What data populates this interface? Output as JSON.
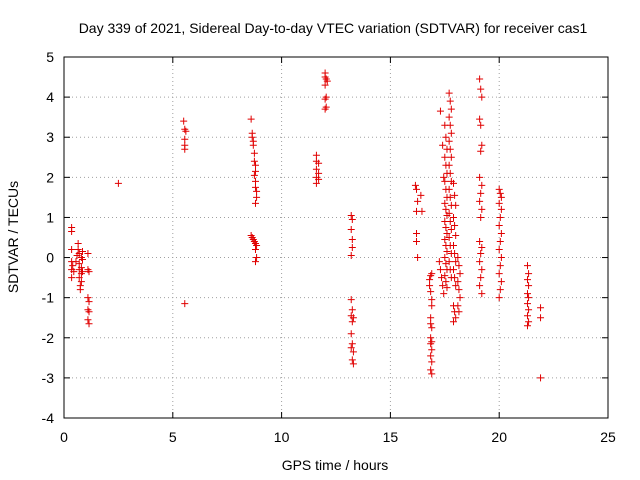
{
  "chart_data": {
    "type": "scatter",
    "title": "Day 339 of 2021, Sidereal Day-to-day VTEC variation (SDTVAR) for receiver cas1",
    "xlabel": "GPS time / hours",
    "ylabel": "SDTVAR / TECUs",
    "xlim": [
      0,
      25
    ],
    "ylim": [
      -4,
      5
    ],
    "xticks": [
      "0",
      "5",
      "10",
      "15",
      "20",
      "25"
    ],
    "yticks": [
      "-4",
      "-3",
      "-2",
      "-1",
      "0",
      "1",
      "2",
      "3",
      "4",
      "5"
    ],
    "grid": true,
    "marker": "+",
    "color": "#e00000",
    "series": [
      {
        "name": "SDTVAR",
        "points": [
          [
            0.35,
            0.75
          ],
          [
            0.35,
            0.65
          ],
          [
            0.35,
            0.2
          ],
          [
            0.35,
            -0.1
          ],
          [
            0.35,
            -0.3
          ],
          [
            0.35,
            -0.5
          ],
          [
            0.4,
            -0.2
          ],
          [
            0.45,
            -0.35
          ],
          [
            0.55,
            -0.1
          ],
          [
            0.6,
            0.05
          ],
          [
            0.65,
            0.35
          ],
          [
            0.65,
            0.2
          ],
          [
            0.7,
            0.1
          ],
          [
            0.7,
            -0.15
          ],
          [
            0.7,
            -0.3
          ],
          [
            0.7,
            -0.5
          ],
          [
            0.75,
            -0.7
          ],
          [
            0.75,
            -0.8
          ],
          [
            0.8,
            -0.6
          ],
          [
            0.8,
            -0.4
          ],
          [
            0.8,
            -0.25
          ],
          [
            0.8,
            0.0
          ],
          [
            0.85,
            0.15
          ],
          [
            0.85,
            -0.05
          ],
          [
            0.85,
            -0.35
          ],
          [
            1.1,
            0.1
          ],
          [
            1.1,
            -0.3
          ],
          [
            1.15,
            -0.35
          ],
          [
            1.1,
            -1.0
          ],
          [
            1.15,
            -1.1
          ],
          [
            1.1,
            -1.3
          ],
          [
            1.15,
            -1.35
          ],
          [
            1.1,
            -1.55
          ],
          [
            1.15,
            -1.65
          ],
          [
            2.5,
            1.85
          ],
          [
            5.5,
            3.4
          ],
          [
            5.55,
            3.2
          ],
          [
            5.6,
            3.15
          ],
          [
            5.55,
            2.95
          ],
          [
            5.55,
            2.8
          ],
          [
            5.55,
            2.7
          ],
          [
            5.55,
            -1.15
          ],
          [
            8.6,
            3.45
          ],
          [
            8.65,
            3.1
          ],
          [
            8.65,
            3.0
          ],
          [
            8.7,
            2.9
          ],
          [
            8.7,
            2.8
          ],
          [
            8.75,
            2.6
          ],
          [
            8.75,
            2.4
          ],
          [
            8.8,
            2.3
          ],
          [
            8.8,
            2.15
          ],
          [
            8.75,
            2.05
          ],
          [
            8.8,
            1.9
          ],
          [
            8.8,
            1.75
          ],
          [
            8.85,
            1.65
          ],
          [
            8.85,
            1.5
          ],
          [
            8.8,
            1.35
          ],
          [
            8.6,
            0.55
          ],
          [
            8.65,
            0.5
          ],
          [
            8.7,
            0.45
          ],
          [
            8.75,
            0.4
          ],
          [
            8.8,
            0.35
          ],
          [
            8.85,
            0.3
          ],
          [
            8.8,
            0.2
          ],
          [
            8.85,
            0.0
          ],
          [
            8.8,
            -0.1
          ],
          [
            11.6,
            2.55
          ],
          [
            11.6,
            2.4
          ],
          [
            11.7,
            2.35
          ],
          [
            11.6,
            2.2
          ],
          [
            11.7,
            2.1
          ],
          [
            11.6,
            2.0
          ],
          [
            11.7,
            1.95
          ],
          [
            11.6,
            1.85
          ],
          [
            12.0,
            4.6
          ],
          [
            12.0,
            4.5
          ],
          [
            12.05,
            4.45
          ],
          [
            12.1,
            4.4
          ],
          [
            12.0,
            4.3
          ],
          [
            12.05,
            4.0
          ],
          [
            12.0,
            3.95
          ],
          [
            12.05,
            3.75
          ],
          [
            12.0,
            3.7
          ],
          [
            13.2,
            1.05
          ],
          [
            13.25,
            0.95
          ],
          [
            13.2,
            0.7
          ],
          [
            13.25,
            0.45
          ],
          [
            13.25,
            0.25
          ],
          [
            13.2,
            0.05
          ],
          [
            13.2,
            -1.05
          ],
          [
            13.25,
            -1.3
          ],
          [
            13.2,
            -1.45
          ],
          [
            13.3,
            -1.5
          ],
          [
            13.25,
            -1.6
          ],
          [
            13.2,
            -1.9
          ],
          [
            13.25,
            -2.15
          ],
          [
            13.2,
            -2.25
          ],
          [
            13.3,
            -2.35
          ],
          [
            13.25,
            -2.55
          ],
          [
            13.3,
            -2.65
          ],
          [
            16.15,
            1.8
          ],
          [
            16.2,
            1.7
          ],
          [
            16.4,
            1.55
          ],
          [
            16.25,
            1.4
          ],
          [
            16.2,
            1.15
          ],
          [
            16.45,
            1.15
          ],
          [
            16.2,
            0.6
          ],
          [
            16.2,
            0.4
          ],
          [
            16.25,
            0.0
          ],
          [
            16.8,
            -0.55
          ],
          [
            16.85,
            -0.45
          ],
          [
            16.9,
            -0.4
          ],
          [
            16.8,
            -0.7
          ],
          [
            16.85,
            -0.85
          ],
          [
            16.9,
            -1.05
          ],
          [
            16.9,
            -1.2
          ],
          [
            16.85,
            -1.5
          ],
          [
            16.85,
            -1.65
          ],
          [
            16.9,
            -1.75
          ],
          [
            16.85,
            -2.0
          ],
          [
            16.9,
            -2.1
          ],
          [
            16.85,
            -2.15
          ],
          [
            16.9,
            -2.3
          ],
          [
            16.85,
            -2.45
          ],
          [
            16.9,
            -2.6
          ],
          [
            16.85,
            -2.8
          ],
          [
            16.9,
            -2.9
          ],
          [
            17.25,
            -0.1
          ],
          [
            17.3,
            -0.3
          ],
          [
            17.35,
            -0.5
          ],
          [
            17.4,
            -0.7
          ],
          [
            17.45,
            -0.9
          ],
          [
            17.3,
            3.65
          ],
          [
            17.4,
            2.8
          ],
          [
            17.45,
            2.0
          ],
          [
            17.5,
            3.3
          ],
          [
            17.55,
            3.0
          ],
          [
            17.6,
            2.7
          ],
          [
            17.5,
            2.5
          ],
          [
            17.55,
            2.3
          ],
          [
            17.6,
            2.1
          ],
          [
            17.5,
            1.9
          ],
          [
            17.55,
            1.7
          ],
          [
            17.6,
            1.5
          ],
          [
            17.5,
            1.35
          ],
          [
            17.55,
            1.2
          ],
          [
            17.6,
            1.05
          ],
          [
            17.5,
            0.9
          ],
          [
            17.55,
            0.75
          ],
          [
            17.6,
            0.6
          ],
          [
            17.5,
            0.45
          ],
          [
            17.55,
            0.3
          ],
          [
            17.6,
            0.15
          ],
          [
            17.5,
            0.0
          ],
          [
            17.55,
            -0.15
          ],
          [
            17.6,
            -0.3
          ],
          [
            17.5,
            -0.45
          ],
          [
            17.55,
            -0.6
          ],
          [
            17.6,
            -0.75
          ],
          [
            17.7,
            4.1
          ],
          [
            17.75,
            3.9
          ],
          [
            17.8,
            3.7
          ],
          [
            17.7,
            3.5
          ],
          [
            17.75,
            3.3
          ],
          [
            17.8,
            3.1
          ],
          [
            17.7,
            2.9
          ],
          [
            17.75,
            2.7
          ],
          [
            17.8,
            2.5
          ],
          [
            17.7,
            2.3
          ],
          [
            17.75,
            2.1
          ],
          [
            17.8,
            1.9
          ],
          [
            17.7,
            1.7
          ],
          [
            17.75,
            1.5
          ],
          [
            17.8,
            1.3
          ],
          [
            17.7,
            1.1
          ],
          [
            17.75,
            0.9
          ],
          [
            17.8,
            0.7
          ],
          [
            17.7,
            0.5
          ],
          [
            17.75,
            0.3
          ],
          [
            17.8,
            0.1
          ],
          [
            17.7,
            -0.1
          ],
          [
            17.75,
            -0.3
          ],
          [
            17.8,
            -0.5
          ],
          [
            17.9,
            1.85
          ],
          [
            17.95,
            1.55
          ],
          [
            18.0,
            1.3
          ],
          [
            17.9,
            1.0
          ],
          [
            17.95,
            0.8
          ],
          [
            18.0,
            0.55
          ],
          [
            17.9,
            0.3
          ],
          [
            17.95,
            0.1
          ],
          [
            18.0,
            -0.1
          ],
          [
            17.9,
            -0.3
          ],
          [
            17.95,
            -0.5
          ],
          [
            18.0,
            -0.7
          ],
          [
            17.9,
            -1.2
          ],
          [
            17.95,
            -1.35
          ],
          [
            18.0,
            -1.5
          ],
          [
            17.9,
            -1.6
          ],
          [
            18.1,
            0.0
          ],
          [
            18.15,
            -0.2
          ],
          [
            18.2,
            -0.4
          ],
          [
            18.1,
            -0.6
          ],
          [
            18.15,
            -0.8
          ],
          [
            18.2,
            -1.0
          ],
          [
            18.1,
            -1.2
          ],
          [
            18.15,
            -1.35
          ],
          [
            19.1,
            4.45
          ],
          [
            19.15,
            4.2
          ],
          [
            19.2,
            4.0
          ],
          [
            19.1,
            3.45
          ],
          [
            19.15,
            3.3
          ],
          [
            19.2,
            2.8
          ],
          [
            19.15,
            2.65
          ],
          [
            19.1,
            2.0
          ],
          [
            19.2,
            1.8
          ],
          [
            19.15,
            1.6
          ],
          [
            19.1,
            1.4
          ],
          [
            19.2,
            1.2
          ],
          [
            19.15,
            1.0
          ],
          [
            19.1,
            0.4
          ],
          [
            19.2,
            0.25
          ],
          [
            19.15,
            0.1
          ],
          [
            19.1,
            -0.1
          ],
          [
            19.2,
            -0.3
          ],
          [
            19.15,
            -0.5
          ],
          [
            19.1,
            -0.7
          ],
          [
            19.2,
            -0.9
          ],
          [
            20.0,
            1.7
          ],
          [
            20.05,
            1.6
          ],
          [
            20.1,
            1.5
          ],
          [
            20.0,
            1.35
          ],
          [
            20.1,
            1.2
          ],
          [
            20.05,
            1.0
          ],
          [
            20.0,
            0.8
          ],
          [
            20.1,
            0.6
          ],
          [
            20.05,
            0.4
          ],
          [
            20.0,
            0.2
          ],
          [
            20.1,
            0.0
          ],
          [
            20.05,
            -0.2
          ],
          [
            20.0,
            -0.4
          ],
          [
            20.1,
            -0.6
          ],
          [
            20.05,
            -0.8
          ],
          [
            20.0,
            -1.0
          ],
          [
            21.3,
            -0.2
          ],
          [
            21.35,
            -0.4
          ],
          [
            21.3,
            -0.55
          ],
          [
            21.35,
            -0.7
          ],
          [
            21.3,
            -0.9
          ],
          [
            21.35,
            -1.0
          ],
          [
            21.3,
            -1.15
          ],
          [
            21.35,
            -1.3
          ],
          [
            21.3,
            -1.45
          ],
          [
            21.35,
            -1.6
          ],
          [
            21.3,
            -1.7
          ],
          [
            21.9,
            -1.25
          ],
          [
            21.9,
            -1.5
          ],
          [
            21.9,
            -3.0
          ]
        ]
      }
    ]
  }
}
